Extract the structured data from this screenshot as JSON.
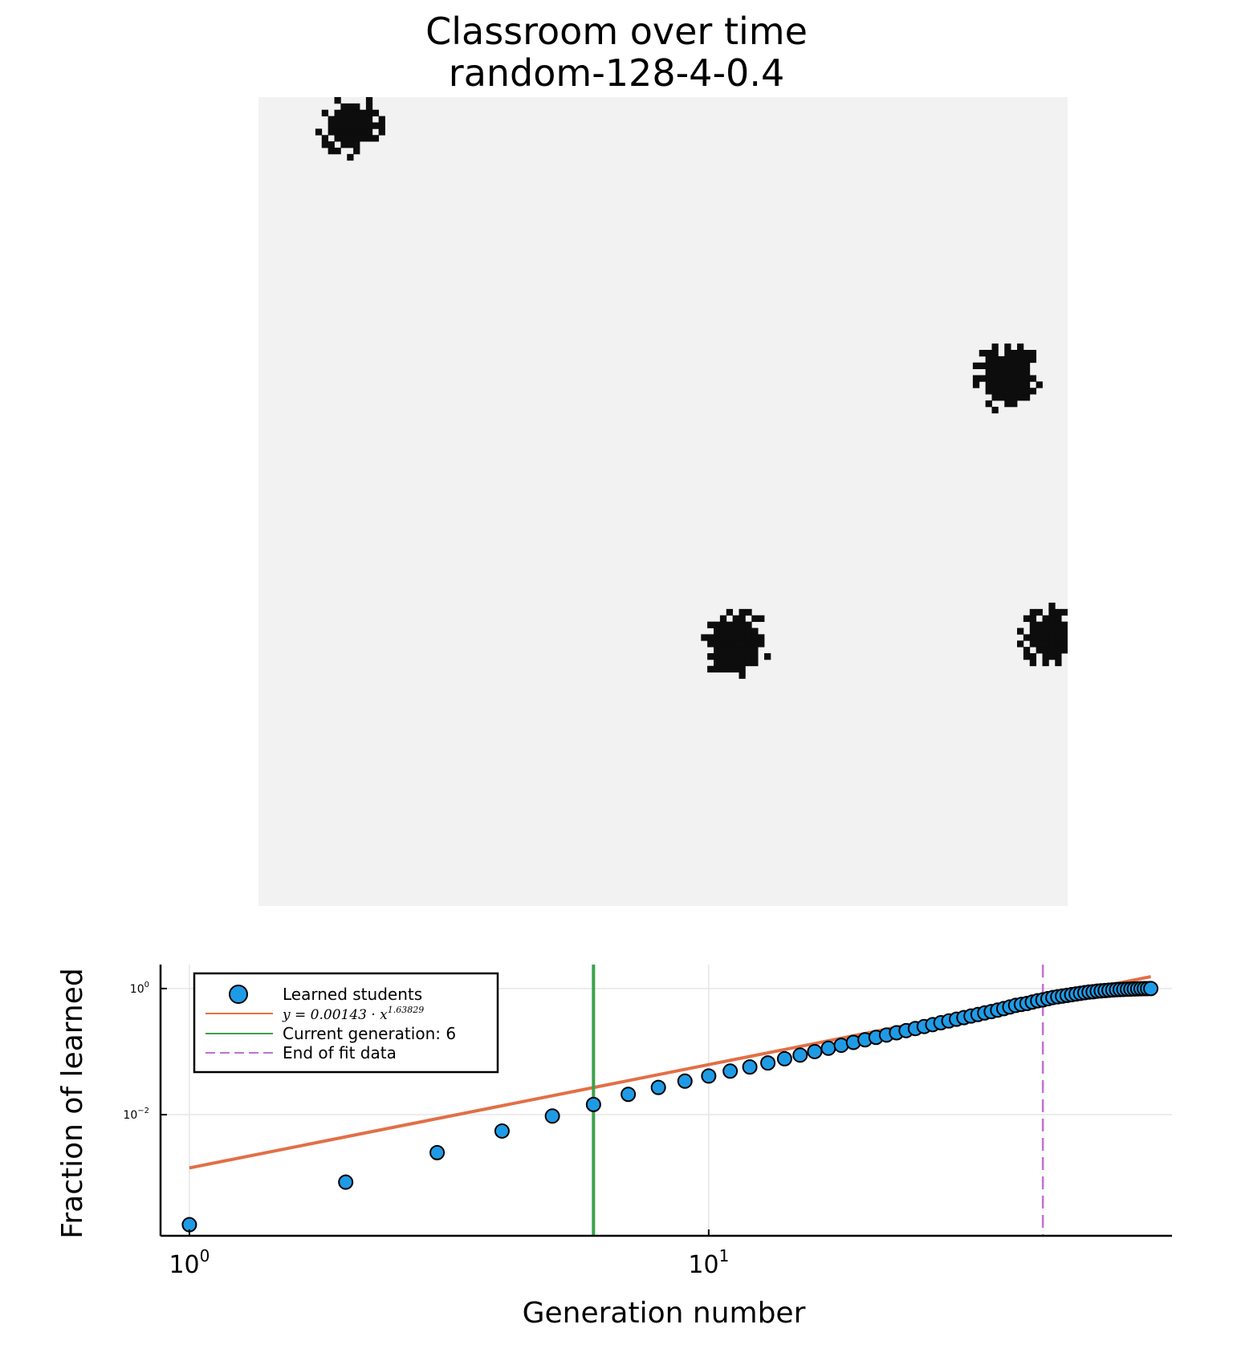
{
  "title_lines": [
    "Classroom over time",
    "random-128-4-0.4"
  ],
  "classroom": {
    "grid_size": 128,
    "background_color": "#f2f2f2",
    "learned_color": "#0d0d0d",
    "clusters": [
      {
        "col": 14,
        "row": 4,
        "radius": 4.2
      },
      {
        "col": 118,
        "row": 44,
        "radius": 4.8
      },
      {
        "col": 75,
        "row": 86,
        "radius": 4.8
      },
      {
        "col": 125,
        "row": 85,
        "radius": 4.2
      }
    ]
  },
  "chart_data": {
    "type": "scatter",
    "x_scale": "log",
    "y_scale": "log",
    "xlabel": "Generation number",
    "ylabel": "Fraction of learned",
    "xlim": [
      0.88,
      78
    ],
    "ylim": [
      0.00012,
      2.4
    ],
    "x_ticks": [
      {
        "base": "10",
        "exp": "0",
        "value": 1
      },
      {
        "base": "10",
        "exp": "1",
        "value": 10
      }
    ],
    "y_ticks": [
      {
        "base": "10",
        "exp": "0",
        "value": 1
      },
      {
        "base": "10",
        "exp": "−2",
        "value": 0.01
      }
    ],
    "grid": true,
    "legend_position": "top-left",
    "series": [
      {
        "name": "Learned students",
        "kind": "points",
        "color": "#1f9be6",
        "x": [
          1,
          2,
          3,
          4,
          5,
          6,
          7,
          8,
          9,
          10,
          11,
          12,
          13,
          14,
          15,
          16,
          17,
          18,
          19,
          20,
          21,
          22,
          23,
          24,
          25,
          26,
          27,
          28,
          29,
          30,
          31,
          32,
          33,
          34,
          35,
          36,
          37,
          38,
          39,
          40,
          41,
          42,
          43,
          44,
          45,
          46,
          47,
          48,
          49,
          50,
          51,
          52,
          53,
          54,
          55,
          56,
          57,
          58,
          59,
          60,
          61,
          62,
          63,
          64,
          65,
          66,
          67,
          68,
          69,
          70,
          71
        ],
        "y": [
          0.00018,
          0.00085,
          0.0025,
          0.0055,
          0.0095,
          0.0145,
          0.021,
          0.027,
          0.034,
          0.041,
          0.049,
          0.057,
          0.066,
          0.077,
          0.088,
          0.1,
          0.113,
          0.126,
          0.14,
          0.154,
          0.168,
          0.183,
          0.199,
          0.215,
          0.232,
          0.25,
          0.268,
          0.287,
          0.306,
          0.326,
          0.346,
          0.366,
          0.387,
          0.41,
          0.43,
          0.455,
          0.48,
          0.51,
          0.54,
          0.56,
          0.58,
          0.61,
          0.64,
          0.66,
          0.69,
          0.72,
          0.74,
          0.76,
          0.78,
          0.8,
          0.82,
          0.84,
          0.86,
          0.88,
          0.89,
          0.91,
          0.92,
          0.93,
          0.94,
          0.95,
          0.96,
          0.965,
          0.97,
          0.975,
          0.98,
          0.985,
          0.99,
          0.993,
          0.996,
          0.998,
          1.0
        ]
      },
      {
        "name": "$y = 0.00143 \\cdot x^{1.63829}$",
        "display": {
          "prefix": "y = 0.00143 · x",
          "exponent": "1.63829"
        },
        "kind": "fit",
        "color": "#e26f46",
        "coef": 0.00143,
        "exponent": 1.63829,
        "x_range": [
          1,
          71
        ]
      },
      {
        "name": "Current generation: 6",
        "kind": "vline",
        "color": "#3ba24b",
        "x": 6
      },
      {
        "name": "End of fit data",
        "kind": "vline-dashed",
        "color": "#c271d2",
        "x": 44
      }
    ]
  }
}
